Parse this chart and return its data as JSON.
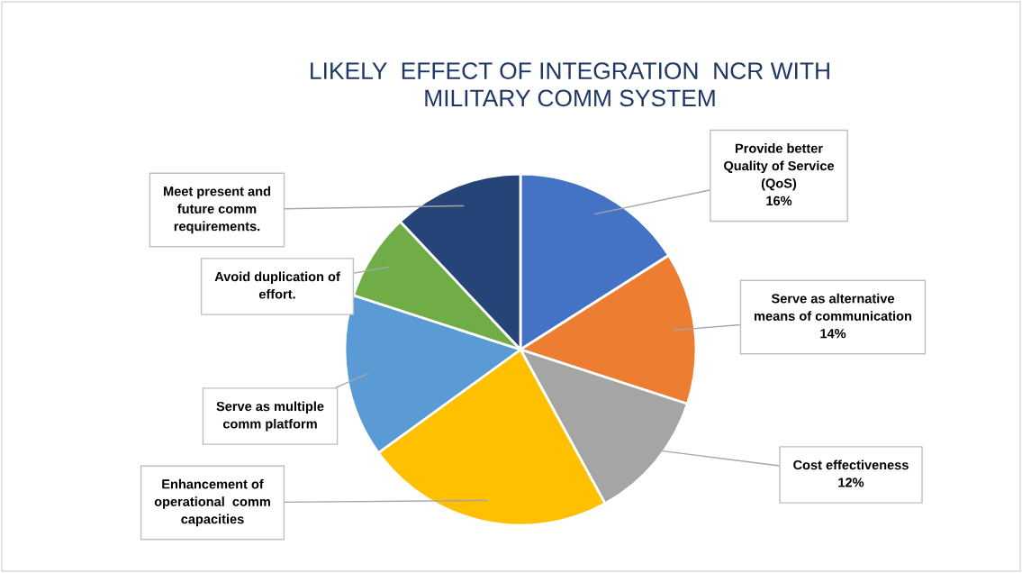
{
  "chart_data": {
    "type": "pie",
    "title": "LIKELY  EFFECT OF INTEGRATION  NCR WITH MILITARY COMM SYSTEM",
    "categories": [
      "Provide better Quality of Service (QoS)",
      "Serve as alternative means of communication",
      "Cost effectiveness",
      "Enhancement of operational  comm capacities",
      "Serve as multiple comm platform",
      "Avoid duplication of effort.",
      "Meet present and future comm requirements."
    ],
    "values": [
      16,
      14,
      12,
      23,
      15,
      8,
      12
    ],
    "colors": [
      "#4472c4",
      "#ed7d31",
      "#a5a5a5",
      "#ffc000",
      "#5b9bd5",
      "#70ad47",
      "#264478"
    ],
    "value_labels": [
      "16%",
      "14%",
      "12%",
      null,
      null,
      null,
      null
    ]
  }
}
